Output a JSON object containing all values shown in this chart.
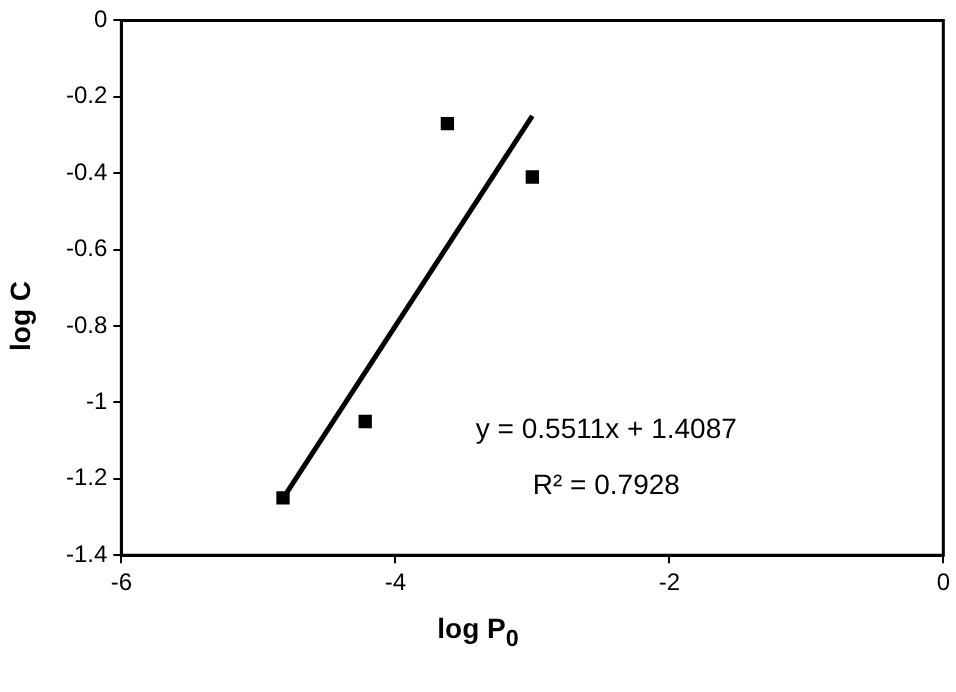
{
  "chart_data": {
    "type": "scatter",
    "xlabel": "log P$_{0}$",
    "ylabel": "log C",
    "series": [
      {
        "color": "#000000",
        "marker": "square",
        "x": [
          -4.82,
          -4.22,
          -3.62,
          -3.0
        ],
        "values": [
          -1.25,
          -1.05,
          -0.27,
          -0.41
        ]
      },
      {
        "type": "line",
        "color": "#000000",
        "marker": "none",
        "x": [
          -4.8,
          -3.0
        ],
        "values": [
          -1.24,
          -0.25
        ]
      }
    ],
    "xlim": [
      -6,
      0
    ],
    "xticks": [
      -6,
      -4,
      -2,
      0
    ],
    "ylim": [
      -1.4,
      0
    ],
    "yticks": [
      -1.4,
      -1.2,
      -1,
      -0.8,
      -0.6,
      -0.4,
      -0.2,
      0
    ],
    "grid": false,
    "legend": false,
    "annotations": [
      "y = 0.5511x + 1.4087",
      "R² = 0.7928"
    ]
  }
}
